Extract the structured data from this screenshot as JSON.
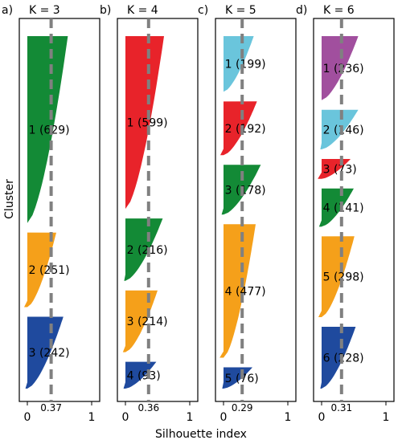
{
  "figure": {
    "ylabel": "Cluster",
    "xlabel": "Silhouette index"
  },
  "colors": {
    "green": "#138a36",
    "orange": "#f5a01a",
    "blue": "#1f4a9e",
    "red": "#e8232a",
    "cyan": "#6ac5dc",
    "purple": "#a14f9e",
    "dashed": "#808080"
  },
  "chart_data": [
    {
      "type": "bar",
      "panel_label": "a)",
      "title": "K = 3",
      "mean_silhouette": 0.37,
      "mean_label": "0.37",
      "xlim": [
        0,
        1
      ],
      "xticks": [
        "0",
        "1"
      ],
      "clusters": [
        {
          "label": "1 (629)",
          "size": 629,
          "max": 0.63,
          "tail": 0.0,
          "color": "green"
        },
        {
          "label": "2 (251)",
          "size": 251,
          "max": 0.45,
          "tail": -0.05,
          "color": "orange"
        },
        {
          "label": "3 (242)",
          "size": 242,
          "max": 0.56,
          "tail": -0.03,
          "color": "blue"
        }
      ]
    },
    {
      "type": "bar",
      "panel_label": "b)",
      "title": "K = 4",
      "mean_silhouette": 0.36,
      "mean_label": "0.36",
      "xlim": [
        0,
        1
      ],
      "xticks": [
        "0",
        "1"
      ],
      "clusters": [
        {
          "label": "1 (599)",
          "size": 599,
          "max": 0.6,
          "tail": 0.0,
          "color": "red"
        },
        {
          "label": "2 (216)",
          "size": 216,
          "max": 0.58,
          "tail": -0.02,
          "color": "green"
        },
        {
          "label": "3 (214)",
          "size": 214,
          "max": 0.5,
          "tail": -0.04,
          "color": "orange"
        },
        {
          "label": "4 (93)",
          "size": 93,
          "max": 0.48,
          "tail": -0.03,
          "color": "blue"
        }
      ]
    },
    {
      "type": "bar",
      "panel_label": "c)",
      "title": "K = 5",
      "mean_silhouette": 0.29,
      "mean_label": "0.29",
      "xlim": [
        0,
        1
      ],
      "xticks": [
        "0",
        "1"
      ],
      "clusters": [
        {
          "label": "1 (199)",
          "size": 199,
          "max": 0.47,
          "tail": 0.0,
          "color": "cyan"
        },
        {
          "label": "2 (192)",
          "size": 192,
          "max": 0.52,
          "tail": -0.05,
          "color": "red"
        },
        {
          "label": "3 (178)",
          "size": 178,
          "max": 0.58,
          "tail": -0.03,
          "color": "green"
        },
        {
          "label": "4 (477)",
          "size": 477,
          "max": 0.5,
          "tail": -0.06,
          "color": "orange"
        },
        {
          "label": "5 (76)",
          "size": 76,
          "max": 0.45,
          "tail": -0.02,
          "color": "blue"
        }
      ]
    },
    {
      "type": "bar",
      "panel_label": "d)",
      "title": "K = 6",
      "mean_silhouette": 0.31,
      "mean_label": "0.31",
      "xlim": [
        0,
        1
      ],
      "xticks": [
        "0",
        "1"
      ],
      "clusters": [
        {
          "label": "1 (236)",
          "size": 236,
          "max": 0.57,
          "tail": 0.0,
          "color": "purple"
        },
        {
          "label": "2 (146)",
          "size": 146,
          "max": 0.57,
          "tail": -0.02,
          "color": "cyan"
        },
        {
          "label": "3 (73)",
          "size": 73,
          "max": 0.45,
          "tail": -0.06,
          "color": "red"
        },
        {
          "label": "4 (141)",
          "size": 141,
          "max": 0.5,
          "tail": -0.04,
          "color": "green"
        },
        {
          "label": "5 (298)",
          "size": 298,
          "max": 0.51,
          "tail": -0.05,
          "color": "orange"
        },
        {
          "label": "6 (228)",
          "size": 228,
          "max": 0.53,
          "tail": -0.02,
          "color": "blue"
        }
      ]
    }
  ]
}
